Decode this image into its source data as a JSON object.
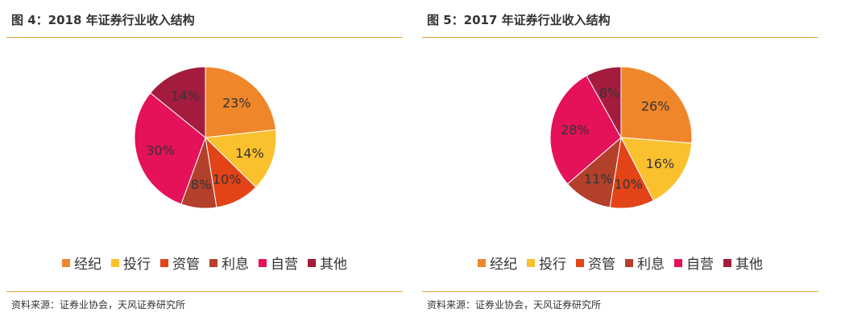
{
  "charts": [
    {
      "title": "图 4：2018 年证券行业收入结构",
      "source": "资料来源：证券业协会，天风证券研究所"
    },
    {
      "title": "图 5：2017 年证券行业收入结构",
      "source": "资料来源：证券业协会，天风证券研究所"
    }
  ],
  "colors": {
    "经纪": "#f0862a",
    "投行": "#fbc02d",
    "资管": "#e24418",
    "利息": "#b3402a",
    "自营": "#e5115a",
    "其他": "#a31c3e"
  },
  "chart_data": [
    {
      "type": "pie",
      "title": "2018 年证券行业收入结构",
      "categories": [
        "经纪",
        "投行",
        "资管",
        "利息",
        "自营",
        "其他"
      ],
      "values": [
        23,
        14,
        10,
        8,
        30,
        14
      ],
      "labels": [
        "23%",
        "14%",
        "10%",
        "8%",
        "30%",
        "14%"
      ],
      "legend": "bottom"
    },
    {
      "type": "pie",
      "title": "2017 年证券行业收入结构",
      "categories": [
        "经纪",
        "投行",
        "资管",
        "利息",
        "自营",
        "其他"
      ],
      "values": [
        26,
        16,
        10,
        11,
        28,
        8
      ],
      "labels": [
        "26%",
        "16%",
        "10%",
        "11%",
        "28%",
        "8%"
      ],
      "legend": "bottom"
    }
  ]
}
